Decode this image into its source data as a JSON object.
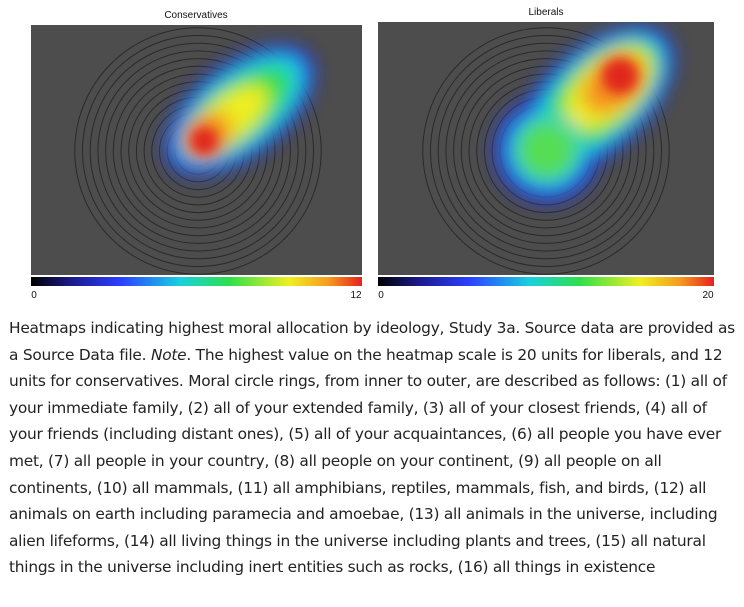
{
  "panels": [
    {
      "title": "Conservatives",
      "scale_min": "0",
      "scale_max": "12"
    },
    {
      "title": "Liberals",
      "scale_min": "0",
      "scale_max": "20"
    }
  ],
  "caption": {
    "text_before": "Heatmaps indicating highest moral allocation by ideology, Study 3a. Source data are provided as a Source Data file. ",
    "note_label": "Note",
    "text_after": ". The highest value on the heatmap scale is 20 units for liberals, and 12 units for conservatives. Moral circle rings, from inner to outer, are described as follows: (1) all of your immediate family, (2) all of your extended family, (3) all of your closest friends, (4) all of your friends (including distant ones), (5) all of your acquaintances, (6) all people you have ever met, (7) all people in your country, (8) all people on your continent, (9) all people on all continents, (10) all mammals, (11) all amphibians, reptiles, mammals, fish, and birds, (12) all animals on earth including paramecia and amoebae, (13) all animals in the universe, including alien lifeforms, (14) all living things in the universe including plants and trees, (15) all natural things in the universe including inert entities such as rocks, (16) all things in existence"
  }
}
